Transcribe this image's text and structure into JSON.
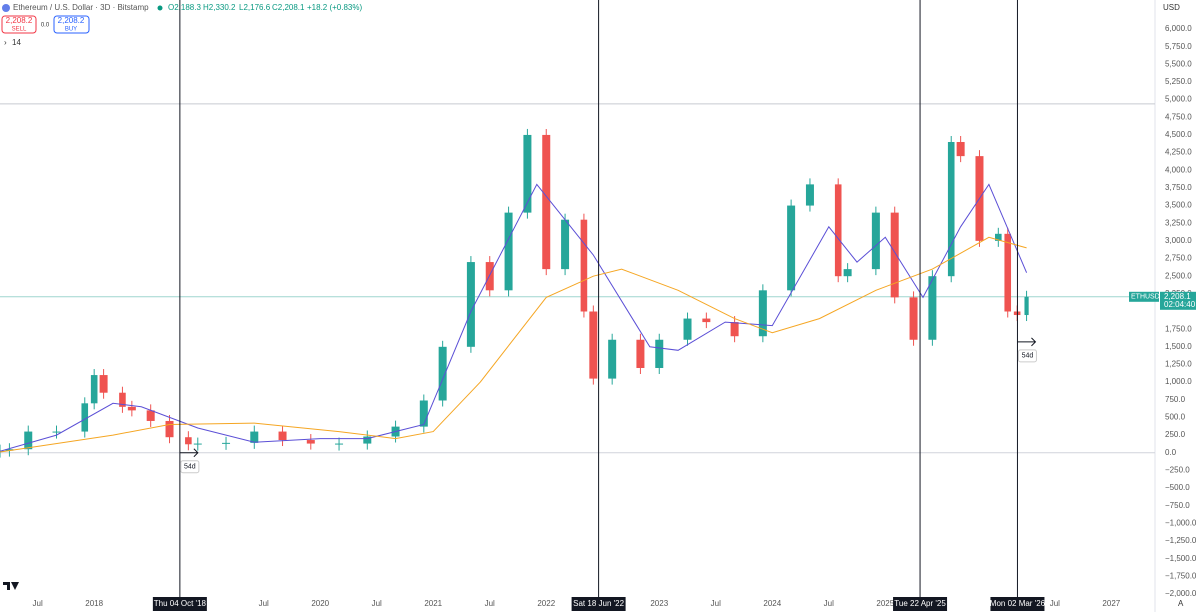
{
  "chart_data": {
    "type": "candle-line",
    "header": {
      "title": "Ethereum / U.S. Dollar · 3D · Bitstamp",
      "open": "O2,188.3",
      "high": "H2,330.2",
      "low": "L2,176.6",
      "close": "C2,208.1",
      "change": "+18.2 (+0.83%)",
      "sell_price": "2,208.2",
      "sell": "SELL",
      "spread": "0.0",
      "buy_price": "2,208.2",
      "buy": "BUY",
      "indicator": "14"
    },
    "currency": "USD",
    "x": [
      "2017-03",
      "2017-04",
      "2017-06",
      "2017-09",
      "2017-12",
      "2018-01",
      "2018-02",
      "2018-04",
      "2018-05",
      "2018-07",
      "2018-09",
      "2018-11",
      "2018-12",
      "2019-03",
      "2019-06",
      "2019-09",
      "2019-12",
      "2020-03",
      "2020-06",
      "2020-09",
      "2020-12",
      "2021-02",
      "2021-05",
      "2021-07",
      "2021-09",
      "2021-11",
      "2022-01",
      "2022-03",
      "2022-05",
      "2022-06",
      "2022-08",
      "2022-11",
      "2023-01",
      "2023-04",
      "2023-06",
      "2023-09",
      "2023-12",
      "2024-03",
      "2024-05",
      "2024-08",
      "2024-09",
      "2024-12",
      "2025-02",
      "2025-04",
      "2025-06",
      "2025-08",
      "2025-09",
      "2025-11",
      "2026-01",
      "2026-02",
      "2026-03",
      "2026-04"
    ],
    "series": [
      {
        "name": "ETHUSD",
        "up_color": "#26a69a",
        "down_color": "#ef5350",
        "values": [
          30,
          50,
          300,
          300,
          700,
          1100,
          850,
          650,
          600,
          450,
          220,
          120,
          130,
          140,
          300,
          180,
          130,
          130,
          230,
          370,
          740,
          1500,
          2700,
          2300,
          3400,
          4500,
          2600,
          3300,
          2000,
          1050,
          1600,
          1200,
          1600,
          1900,
          1850,
          1650,
          2300,
          3500,
          3800,
          2500,
          2600,
          3400,
          2200,
          1600,
          2500,
          4400,
          4200,
          3000,
          3100,
          2000,
          1950,
          2208.1
        ]
      }
    ],
    "averages": [
      {
        "color": "#5b4fd6",
        "x": [
          "2017-03",
          "2017-09",
          "2018-03",
          "2018-06",
          "2018-12",
          "2019-06",
          "2020-01",
          "2020-06",
          "2020-12",
          "2021-05",
          "2021-12",
          "2022-06",
          "2022-12",
          "2023-03",
          "2023-08",
          "2024-01",
          "2024-07",
          "2024-10",
          "2025-01",
          "2025-05",
          "2025-09",
          "2025-12",
          "2026-04"
        ],
        "values": [
          20,
          250,
          700,
          650,
          350,
          150,
          200,
          200,
          400,
          2000,
          3800,
          2800,
          1500,
          1450,
          1850,
          1800,
          3200,
          2700,
          3050,
          2200,
          3200,
          3800,
          2550
        ]
      },
      {
        "color": "#f5a623",
        "x": [
          "2017-03",
          "2018-03",
          "2018-09",
          "2019-06",
          "2020-03",
          "2020-09",
          "2021-01",
          "2021-06",
          "2022-01",
          "2022-06",
          "2022-09",
          "2023-03",
          "2023-09",
          "2024-01",
          "2024-06",
          "2024-12",
          "2025-06",
          "2025-12",
          "2026-04"
        ],
        "values": [
          10,
          250,
          400,
          420,
          300,
          200,
          300,
          1000,
          2200,
          2500,
          2600,
          2300,
          1900,
          1700,
          1900,
          2300,
          2600,
          3050,
          2900
        ]
      }
    ],
    "horizontal_line": 4940,
    "price_label": {
      "value": 2208.1,
      "label": "2,208.1",
      "symbol": "ETHUSD",
      "countdown": "02:04:40"
    },
    "markers": [
      {
        "x": "2018-10-04",
        "label": "Thu 04 Oct '18"
      },
      {
        "x": "2022-06-18",
        "label": "Sat 18 Jun '22"
      },
      {
        "x": "2025-04-22",
        "label": "Tue 22 Apr '25"
      },
      {
        "x": "2026-03-02",
        "label": "Mon 02 Mar '26"
      }
    ],
    "measures": [
      {
        "x": "2018-10-04",
        "y": 0,
        "label": "54d"
      },
      {
        "x": "2026-03-02",
        "y": 1570,
        "label": "54d"
      }
    ],
    "xlim": [
      "2017-03",
      "2027-05"
    ],
    "xticks": [
      {
        "value": "2017-07",
        "label": "Jul"
      },
      {
        "value": "2018-01",
        "label": "2018"
      },
      {
        "value": "2019-07",
        "label": "Jul"
      },
      {
        "value": "2020-01",
        "label": "2020"
      },
      {
        "value": "2020-07",
        "label": "Jul"
      },
      {
        "value": "2021-01",
        "label": "2021"
      },
      {
        "value": "2021-07",
        "label": "Jul"
      },
      {
        "value": "2022-01",
        "label": "2022"
      },
      {
        "value": "2023-01",
        "label": "2023"
      },
      {
        "value": "2023-07",
        "label": "Jul"
      },
      {
        "value": "2024-01",
        "label": "2024"
      },
      {
        "value": "2024-07",
        "label": "Jul"
      },
      {
        "value": "2025-01",
        "label": "2025"
      },
      {
        "value": "2026-07",
        "label": "Jul"
      },
      {
        "value": "2027-01",
        "label": "2027"
      }
    ],
    "ylim": [
      -2000,
      6000
    ],
    "yticks": [
      {
        "value": 6000,
        "label": "6,000.0"
      },
      {
        "value": 5750,
        "label": "5,750.0"
      },
      {
        "value": 5500,
        "label": "5,500.0"
      },
      {
        "value": 5250,
        "label": "5,250.0"
      },
      {
        "value": 5000,
        "label": "5,000.0"
      },
      {
        "value": 4750,
        "label": "4,750.0"
      },
      {
        "value": 4500,
        "label": "4,500.0"
      },
      {
        "value": 4250,
        "label": "4,250.0"
      },
      {
        "value": 4000,
        "label": "4,000.0"
      },
      {
        "value": 3750,
        "label": "3,750.0"
      },
      {
        "value": 3500,
        "label": "3,500.0"
      },
      {
        "value": 3250,
        "label": "3,250.0"
      },
      {
        "value": 3000,
        "label": "3,000.0"
      },
      {
        "value": 2750,
        "label": "2,750.0"
      },
      {
        "value": 2500,
        "label": "2,500.0"
      },
      {
        "value": 2250,
        "label": "2,250.0"
      },
      {
        "value": 1750,
        "label": "1,750.0"
      },
      {
        "value": 1500,
        "label": "1,500.0"
      },
      {
        "value": 1250,
        "label": "1,250.0"
      },
      {
        "value": 1000,
        "label": "1,000.0"
      },
      {
        "value": 750,
        "label": "750.0"
      },
      {
        "value": 500,
        "label": "500.0"
      },
      {
        "value": 250,
        "label": "250.0"
      },
      {
        "value": 0,
        "label": "0.0"
      },
      {
        "value": -250,
        "label": "−250.0"
      },
      {
        "value": -500,
        "label": "−500.0"
      },
      {
        "value": -750,
        "label": "−750.0"
      },
      {
        "value": -1000,
        "label": "−1,000.0"
      },
      {
        "value": -1250,
        "label": "−1,250.0"
      },
      {
        "value": -1500,
        "label": "−1,500.0"
      },
      {
        "value": -1750,
        "label": "−1,750.0"
      },
      {
        "value": -2000,
        "label": "−2,000.0"
      }
    ],
    "scale_mode": "A"
  }
}
